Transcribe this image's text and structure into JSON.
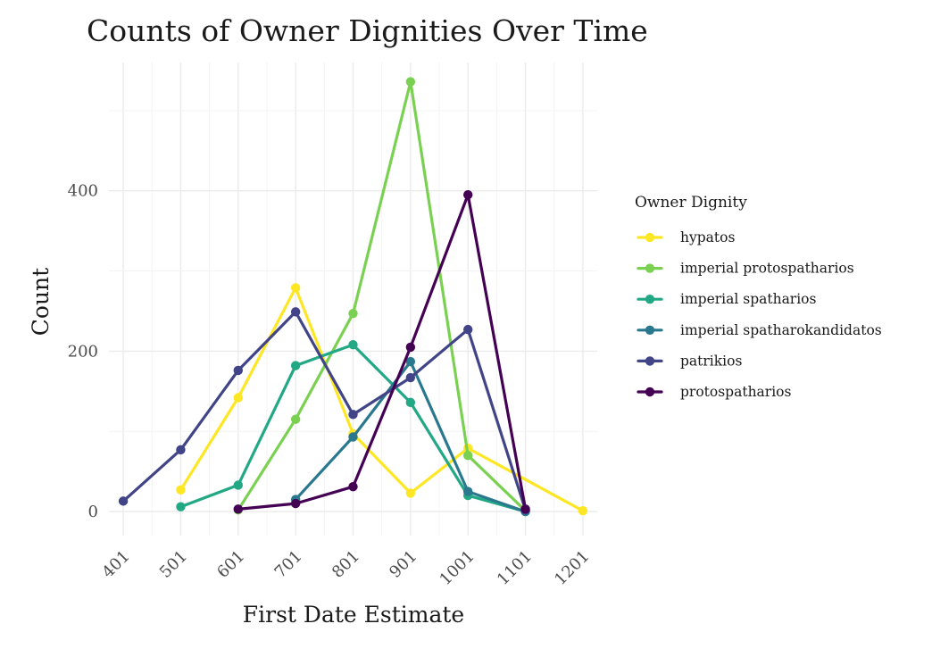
{
  "chart_data": {
    "type": "line",
    "title": "Counts of Owner Dignities Over Time",
    "xlabel": "First Date Estimate",
    "ylabel": "Count",
    "x_ticks": [
      401,
      501,
      601,
      701,
      801,
      901,
      1001,
      1101,
      1201
    ],
    "y_ticks": [
      0,
      200,
      400
    ],
    "xlim": [
      376,
      1226
    ],
    "ylim": [
      -30,
      560
    ],
    "grid": true,
    "legend": {
      "title": "Owner Dignity",
      "position": "right"
    },
    "series": [
      {
        "name": "hypatos",
        "color": "#FDE725",
        "points": [
          [
            501,
            27
          ],
          [
            601,
            142
          ],
          [
            701,
            279
          ],
          [
            801,
            97
          ],
          [
            901,
            23
          ],
          [
            1001,
            79
          ],
          [
            1201,
            1
          ]
        ]
      },
      {
        "name": "imperial protospatharios",
        "color": "#7AD151",
        "points": [
          [
            601,
            2
          ],
          [
            701,
            115
          ],
          [
            801,
            247
          ],
          [
            901,
            536
          ],
          [
            1001,
            70
          ],
          [
            1101,
            1
          ]
        ]
      },
      {
        "name": "imperial spatharios",
        "color": "#22A884",
        "points": [
          [
            501,
            6
          ],
          [
            601,
            33
          ],
          [
            701,
            182
          ],
          [
            801,
            208
          ],
          [
            901,
            136
          ],
          [
            1001,
            20
          ],
          [
            1101,
            0
          ]
        ]
      },
      {
        "name": "imperial spatharokandidatos",
        "color": "#2A788E",
        "points": [
          [
            701,
            15
          ],
          [
            801,
            93
          ],
          [
            901,
            187
          ],
          [
            1001,
            25
          ],
          [
            1101,
            0
          ]
        ]
      },
      {
        "name": "patrikios",
        "color": "#414487",
        "points": [
          [
            401,
            13
          ],
          [
            501,
            77
          ],
          [
            601,
            176
          ],
          [
            701,
            249
          ],
          [
            801,
            121
          ],
          [
            901,
            167
          ],
          [
            1001,
            227
          ],
          [
            1101,
            2
          ]
        ]
      },
      {
        "name": "protospatharios",
        "color": "#440154",
        "points": [
          [
            601,
            3
          ],
          [
            701,
            10
          ],
          [
            801,
            31
          ],
          [
            901,
            205
          ],
          [
            1001,
            395
          ],
          [
            1101,
            3
          ]
        ]
      }
    ]
  }
}
